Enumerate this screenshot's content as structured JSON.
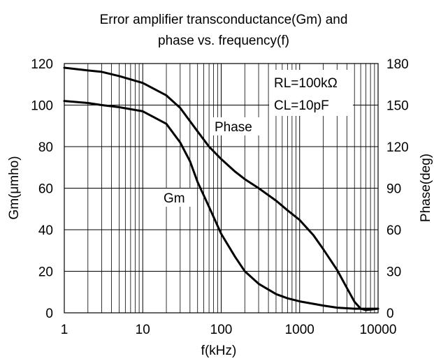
{
  "chart_data": {
    "type": "line",
    "title_line1": "Error amplifier transconductance(Gm) and",
    "title_line2": "phase vs. frequency(f)",
    "xlabel": "f(kHz)",
    "ylabel_left": "Gm(μmho)",
    "ylabel_right": "Phase(deg)",
    "x_scale": "log",
    "xlim": [
      1,
      10000
    ],
    "ylim_left": [
      0,
      120
    ],
    "ylim_right": [
      0,
      180
    ],
    "grid": true,
    "x_ticks": [
      1,
      10,
      100,
      1000,
      10000
    ],
    "x_tick_labels": [
      "1",
      "10",
      "100",
      "1000",
      "10000"
    ],
    "y_left_ticks": [
      0,
      20,
      40,
      60,
      80,
      100,
      120
    ],
    "y_left_tick_labels": [
      "0",
      "20",
      "40",
      "60",
      "80",
      "100",
      "120"
    ],
    "y_right_ticks": [
      0,
      30,
      60,
      90,
      120,
      150,
      180
    ],
    "y_right_tick_labels": [
      "0",
      "30",
      "60",
      "90",
      "120",
      "150",
      "180"
    ],
    "annotations": {
      "rl": "RL=100kΩ",
      "cl": "CL=10pF",
      "phase_label": "Phase",
      "gm_label": "Gm"
    },
    "series": [
      {
        "name": "Phase",
        "axis": "right",
        "x": [
          1,
          2,
          3,
          5,
          10,
          20,
          30,
          50,
          70,
          100,
          150,
          200,
          300,
          500,
          700,
          1000,
          1500,
          2000,
          3000,
          4000,
          5000,
          6000,
          7000,
          10000
        ],
        "y": [
          177,
          175,
          174,
          171,
          166,
          157,
          148,
          131,
          120,
          111,
          102,
          96.5,
          90,
          81,
          74,
          67,
          56,
          46,
          31,
          18,
          8,
          3,
          2,
          3
        ]
      },
      {
        "name": "Gm",
        "axis": "left",
        "x": [
          1,
          2,
          3,
          5,
          10,
          20,
          30,
          40,
          50,
          70,
          100,
          150,
          200,
          300,
          500,
          700,
          1000,
          2000,
          3000,
          5000,
          7000,
          10000
        ],
        "y": [
          102,
          101,
          100,
          99,
          97,
          91,
          82,
          73,
          63,
          51,
          38,
          27,
          20,
          14,
          9,
          7,
          5.5,
          3.5,
          2.5,
          2,
          2,
          2
        ]
      }
    ]
  }
}
